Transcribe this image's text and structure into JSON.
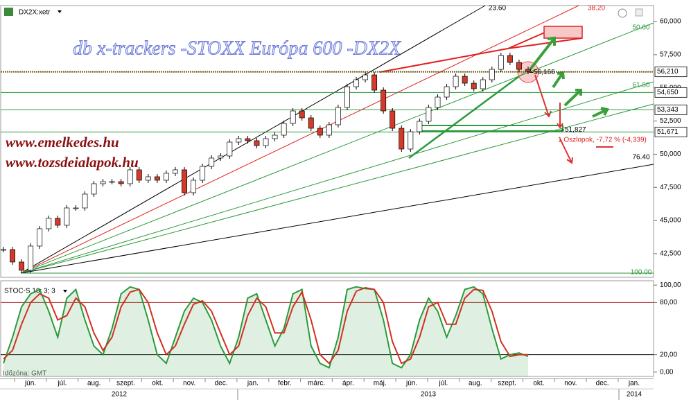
{
  "header": {
    "symbol": "DX2X:xetr",
    "timezone": "Időzóna: GMT"
  },
  "time_axis": {
    "months": [
      "jún.",
      "júl.",
      "aug.",
      "szept.",
      "okt.",
      "nov.",
      "dec.",
      "jan.",
      "febr.",
      "márc.",
      "ápr.",
      "máj.",
      "jún.",
      "júl.",
      "aug.",
      "szept.",
      "okt.",
      "nov.",
      "dec.",
      "jan."
    ],
    "years": [
      "2012",
      "2013",
      "2014"
    ]
  },
  "chart_data": [
    {
      "type": "candlestick",
      "title": "db x-trackers -STOXX Európa 600 -DX2X",
      "links": [
        "www.emelkedes.hu",
        "www.tozsdeialapok.hu"
      ],
      "values": [
        42813,
        41873,
        41246,
        43074,
        44380,
        45164,
        44641,
        45947,
        45947,
        46992,
        47776,
        47932,
        47932,
        47776,
        48821,
        48037,
        48298,
        48037,
        48560,
        48821,
        47097,
        48037,
        49082,
        49709,
        49866,
        50910,
        51172,
        51015,
        50649,
        51172,
        51433,
        52321,
        53261,
        52739,
        51955,
        51433,
        52217,
        53522,
        55089,
        55612,
        55977,
        54828,
        53261,
        51955,
        50388,
        51694,
        52478,
        53522,
        54306,
        55089,
        55873,
        55351,
        54933,
        55612,
        56396,
        57440,
        56918,
        56396,
        56239
      ],
      "up_color": "#ffffff",
      "down_color": "#d23a2a",
      "ylim": [
        40720,
        61100
      ],
      "yticks": [
        {
          "value": 60000,
          "label": "60,000"
        },
        {
          "value": 57500,
          "label": "57,500"
        },
        {
          "value": 55000,
          "label": "55,000"
        },
        {
          "value": 52500,
          "label": "52,500"
        },
        {
          "value": 50000,
          "label": "50,000"
        },
        {
          "value": 47500,
          "label": "47,500"
        },
        {
          "value": 45000,
          "label": "45,000"
        },
        {
          "value": 42500,
          "label": "42,500"
        }
      ],
      "price_levels": [
        {
          "value": 56210,
          "label": "56,210"
        },
        {
          "value": 54650,
          "label": "54,650"
        },
        {
          "value": 53343,
          "label": "53,343"
        },
        {
          "value": 51671,
          "label": "51,671"
        }
      ],
      "fan_levels": [
        "23.60",
        "38.20",
        "50.00",
        "61.80",
        "76.40",
        "100.00"
      ],
      "annotations": [
        {
          "value": 56166,
          "label": "56,166"
        },
        {
          "value": 51827,
          "label": "51,827"
        }
      ],
      "change_label": "1 Oszlopok, -7,72 % (-4,339)"
    },
    {
      "type": "line",
      "title": "STOC-S 10; 3; 3",
      "series": [
        {
          "color": "#2a9a3a",
          "values": [
            10,
            40,
            75,
            90,
            95,
            70,
            40,
            85,
            95,
            60,
            30,
            20,
            50,
            90,
            98,
            95,
            60,
            20,
            10,
            40,
            70,
            85,
            80,
            60,
            30,
            10,
            40,
            85,
            90,
            60,
            30,
            50,
            90,
            95,
            30,
            10,
            5,
            40,
            95,
            98,
            96,
            95,
            60,
            10,
            5,
            20,
            60,
            85,
            70,
            40,
            65,
            95,
            98,
            90,
            50,
            15,
            20,
            22,
            18
          ]
        },
        {
          "color": "#d03020",
          "values": [
            15,
            25,
            55,
            80,
            90,
            85,
            60,
            65,
            85,
            75,
            45,
            25,
            40,
            75,
            92,
            95,
            80,
            45,
            20,
            30,
            55,
            78,
            82,
            70,
            45,
            20,
            30,
            65,
            85,
            75,
            45,
            45,
            75,
            92,
            60,
            20,
            10,
            25,
            70,
            93,
            97,
            95,
            80,
            35,
            10,
            15,
            40,
            75,
            80,
            55,
            55,
            85,
            95,
            94,
            70,
            35,
            18,
            20,
            20
          ]
        }
      ],
      "ylim": [
        -5,
        105
      ],
      "yticks": [
        {
          "value": 100,
          "label": "100,00"
        },
        {
          "value": 80,
          "label": "80,00"
        },
        {
          "value": 20,
          "label": "20,00"
        },
        {
          "value": 0,
          "label": "0,00"
        }
      ],
      "level_lines": [
        80,
        20
      ]
    }
  ]
}
